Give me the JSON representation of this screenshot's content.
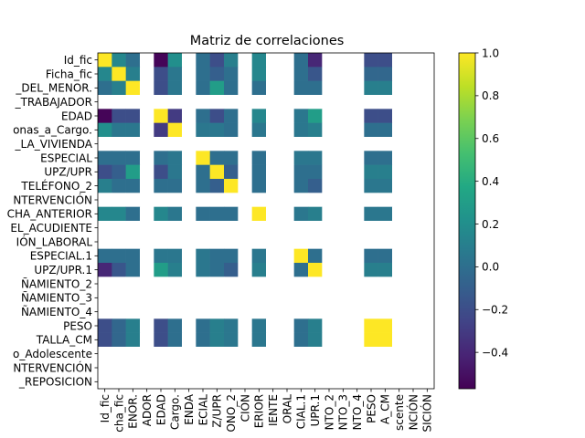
{
  "chart_data": {
    "type": "heatmap",
    "title": "Matriz de correlaciones",
    "xlabel": "",
    "ylabel": "",
    "y_tick_labels": [
      "Id_fic",
      "Ficha_fic",
      "_DEL_MENOR.",
      "_TRABAJADOR",
      "EDAD",
      "onas_a_Cargo.",
      "_LA_VIVIENDA",
      "ESPECIAL",
      "UPZ/UPR",
      "TELÉFONO_2",
      "NTERVENCIÓN",
      "CHA_ANTERIOR",
      "EL_ACUDIENTE",
      "IÓN_LABORAL",
      "ESPECIAL.1",
      "UPZ/UPR.1",
      "ÑAMIENTO_2",
      "ÑAMIENTO_3",
      "ÑAMIENTO_4",
      "PESO",
      "TALLA_CM",
      "o_Adolescente",
      "NTERVENCIÓN",
      "_REPOSICION"
    ],
    "x_tick_labels": [
      "Id_fic",
      "cha_fic",
      "ENOR.",
      "ADOR",
      "EDAD",
      "Cargo.",
      "ENDA",
      "ECIAL",
      "Z/UPR",
      "ONO_2",
      "CIÓN",
      "ERIOR",
      "IENTE",
      "ORAL",
      "CIAL.1",
      "UPR.1",
      "NTO_2",
      "NTO_3",
      "NTO_4",
      "PESO",
      "A_CM",
      "scente",
      "NCIÓN",
      "SICIÓN"
    ],
    "matrix": [
      [
        1.0,
        0.15,
        0.0,
        null,
        -0.55,
        0.2,
        null,
        0.0,
        -0.2,
        0.1,
        null,
        0.15,
        null,
        null,
        0.0,
        -0.4,
        null,
        null,
        null,
        -0.2,
        -0.2,
        null,
        null,
        null
      ],
      [
        0.15,
        1.0,
        0.1,
        null,
        -0.2,
        0.05,
        null,
        0.0,
        -0.1,
        0.0,
        null,
        0.15,
        null,
        null,
        0.0,
        -0.15,
        null,
        null,
        null,
        -0.05,
        -0.05,
        null,
        null,
        null
      ],
      [
        0.0,
        0.1,
        1.0,
        null,
        -0.2,
        0.05,
        null,
        0.0,
        0.3,
        0.0,
        null,
        0.0,
        null,
        null,
        0.0,
        0.0,
        null,
        null,
        null,
        0.1,
        0.1,
        null,
        null,
        null
      ],
      [
        null,
        null,
        null,
        null,
        null,
        null,
        null,
        null,
        null,
        null,
        null,
        null,
        null,
        null,
        null,
        null,
        null,
        null,
        null,
        null,
        null,
        null,
        null,
        null
      ],
      [
        -0.55,
        -0.2,
        -0.2,
        null,
        1.0,
        -0.3,
        null,
        0.0,
        -0.2,
        0.0,
        null,
        0.15,
        null,
        null,
        0.05,
        0.3,
        null,
        null,
        null,
        -0.2,
        -0.2,
        null,
        null,
        null
      ],
      [
        0.2,
        0.05,
        0.05,
        null,
        -0.3,
        1.0,
        null,
        0.05,
        0.05,
        0.0,
        null,
        0.05,
        null,
        null,
        0.05,
        0.1,
        null,
        null,
        null,
        0.0,
        0.0,
        null,
        null,
        null
      ],
      [
        null,
        null,
        null,
        null,
        null,
        null,
        null,
        null,
        null,
        null,
        null,
        null,
        null,
        null,
        null,
        null,
        null,
        null,
        null,
        null,
        null,
        null,
        null,
        null
      ],
      [
        0.0,
        0.0,
        0.0,
        null,
        0.0,
        0.05,
        null,
        1.0,
        0.0,
        0.0,
        null,
        0.0,
        null,
        null,
        0.05,
        0.05,
        null,
        null,
        null,
        0.0,
        0.0,
        null,
        null,
        null
      ],
      [
        -0.2,
        -0.1,
        0.3,
        null,
        -0.2,
        0.05,
        null,
        0.0,
        1.0,
        -0.1,
        null,
        0.0,
        null,
        null,
        0.0,
        0.0,
        null,
        null,
        null,
        0.1,
        0.1,
        null,
        null,
        null
      ],
      [
        0.1,
        0.0,
        0.0,
        null,
        0.0,
        0.0,
        null,
        0.0,
        -0.1,
        1.0,
        null,
        0.0,
        null,
        null,
        0.0,
        -0.1,
        null,
        null,
        null,
        0.05,
        0.05,
        null,
        null,
        null
      ],
      [
        null,
        null,
        null,
        null,
        null,
        null,
        null,
        null,
        null,
        null,
        null,
        null,
        null,
        null,
        null,
        null,
        null,
        null,
        null,
        null,
        null,
        null,
        null,
        null
      ],
      [
        0.15,
        0.15,
        0.0,
        null,
        0.15,
        0.05,
        null,
        0.0,
        0.0,
        0.0,
        null,
        1.0,
        null,
        null,
        0.05,
        0.1,
        null,
        null,
        null,
        0.05,
        0.05,
        null,
        null,
        null
      ],
      [
        null,
        null,
        null,
        null,
        null,
        null,
        null,
        null,
        null,
        null,
        null,
        null,
        null,
        null,
        null,
        null,
        null,
        null,
        null,
        null,
        null,
        null,
        null,
        null
      ],
      [
        null,
        null,
        null,
        null,
        null,
        null,
        null,
        null,
        null,
        null,
        null,
        null,
        null,
        null,
        null,
        null,
        null,
        null,
        null,
        null,
        null,
        null,
        null,
        null
      ],
      [
        0.0,
        0.0,
        0.0,
        null,
        0.05,
        0.05,
        null,
        0.05,
        0.0,
        0.0,
        null,
        0.05,
        null,
        null,
        1.0,
        0.0,
        null,
        null,
        null,
        0.0,
        0.0,
        null,
        null,
        null
      ],
      [
        -0.4,
        -0.15,
        0.0,
        null,
        0.3,
        0.1,
        null,
        0.05,
        0.0,
        -0.1,
        null,
        0.1,
        null,
        null,
        0.0,
        1.0,
        null,
        null,
        null,
        0.1,
        0.1,
        null,
        null,
        null
      ],
      [
        null,
        null,
        null,
        null,
        null,
        null,
        null,
        null,
        null,
        null,
        null,
        null,
        null,
        null,
        null,
        null,
        null,
        null,
        null,
        null,
        null,
        null,
        null,
        null
      ],
      [
        null,
        null,
        null,
        null,
        null,
        null,
        null,
        null,
        null,
        null,
        null,
        null,
        null,
        null,
        null,
        null,
        null,
        null,
        null,
        null,
        null,
        null,
        null,
        null
      ],
      [
        null,
        null,
        null,
        null,
        null,
        null,
        null,
        null,
        null,
        null,
        null,
        null,
        null,
        null,
        null,
        null,
        null,
        null,
        null,
        null,
        null,
        null,
        null,
        null
      ],
      [
        -0.2,
        -0.05,
        0.1,
        null,
        -0.2,
        0.0,
        null,
        0.0,
        0.1,
        0.05,
        null,
        0.05,
        null,
        null,
        0.0,
        0.1,
        null,
        null,
        null,
        1.0,
        1.0,
        null,
        null,
        null
      ],
      [
        -0.2,
        -0.05,
        0.1,
        null,
        -0.2,
        0.0,
        null,
        0.0,
        0.1,
        0.05,
        null,
        0.05,
        null,
        null,
        0.0,
        0.1,
        null,
        null,
        null,
        1.0,
        1.0,
        null,
        null,
        null
      ],
      [
        null,
        null,
        null,
        null,
        null,
        null,
        null,
        null,
        null,
        null,
        null,
        null,
        null,
        null,
        null,
        null,
        null,
        null,
        null,
        null,
        null,
        null,
        null,
        null
      ],
      [
        null,
        null,
        null,
        null,
        null,
        null,
        null,
        null,
        null,
        null,
        null,
        null,
        null,
        null,
        null,
        null,
        null,
        null,
        null,
        null,
        null,
        null,
        null,
        null
      ],
      [
        null,
        null,
        null,
        null,
        null,
        null,
        null,
        null,
        null,
        null,
        null,
        null,
        null,
        null,
        null,
        null,
        null,
        null,
        null,
        null,
        null,
        null,
        null,
        null
      ]
    ],
    "vmin": -0.57,
    "vmax": 1.0,
    "colormap": "viridis",
    "colorbar_ticks": [
      "1.0",
      "0.8",
      "0.6",
      "0.4",
      "0.2",
      "0.0",
      "−0.2",
      "−0.4"
    ],
    "colorbar_tick_values": [
      1.0,
      0.8,
      0.6,
      0.4,
      0.2,
      0.0,
      -0.2,
      -0.4
    ],
    "missing_color": "#ffffff",
    "grid": false
  }
}
